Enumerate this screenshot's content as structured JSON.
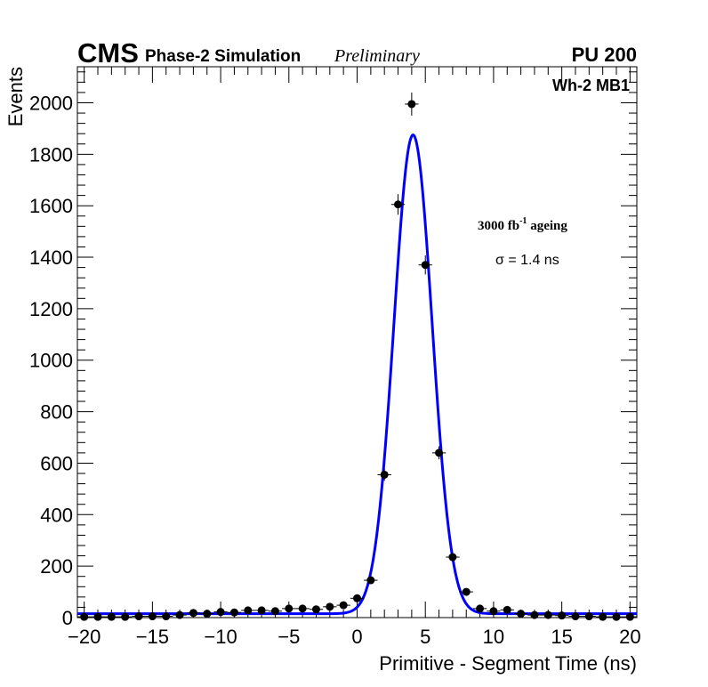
{
  "header": {
    "experiment": "CMS",
    "simulation": "Phase-2 Simulation",
    "status": "Preliminary",
    "pileup": "PU 200"
  },
  "labels": {
    "chamber": "Wh-2 MB1",
    "ageing_main": "3000 fb",
    "ageing_exp": "-1",
    "ageing_suffix": " ageing",
    "sigma": "σ = 1.4 ns"
  },
  "chart_data": {
    "type": "scatter",
    "xlabel": "Primitive - Segment Time (ns)",
    "ylabel": "Events",
    "xlim": [
      -20.5,
      20.5
    ],
    "ylim": [
      0,
      2140
    ],
    "xticks": [
      -20,
      -15,
      -10,
      -5,
      0,
      5,
      10,
      15,
      20
    ],
    "yticks": [
      0,
      200,
      400,
      600,
      800,
      1000,
      1200,
      1400,
      1600,
      1800,
      2000
    ],
    "grid": false,
    "colors": {
      "points": "#000000",
      "fit": "#0000ff"
    },
    "series": [
      {
        "kind": "points_with_errors",
        "x": [
          -20,
          -19,
          -18,
          -17,
          -16,
          -15,
          -14,
          -13,
          -12,
          -11,
          -10,
          -9,
          -8,
          -7,
          -6,
          -5,
          -4,
          -3,
          -2,
          -1,
          0,
          1,
          2,
          3,
          4,
          5,
          6,
          7,
          8,
          9,
          10,
          11,
          12,
          13,
          14,
          15,
          16,
          17,
          18,
          19,
          20
        ],
        "y": [
          3,
          3,
          3,
          3,
          5,
          5,
          5,
          10,
          18,
          15,
          22,
          20,
          28,
          28,
          25,
          35,
          35,
          32,
          42,
          48,
          75,
          145,
          555,
          1605,
          1995,
          1370,
          640,
          235,
          100,
          35,
          25,
          30,
          15,
          10,
          10,
          8,
          5,
          5,
          3,
          3,
          3
        ]
      },
      {
        "kind": "fit",
        "function": "gaussian",
        "mean": 4.1,
        "sigma": 1.4,
        "amplitude": 1860,
        "baseline": 15
      }
    ]
  }
}
